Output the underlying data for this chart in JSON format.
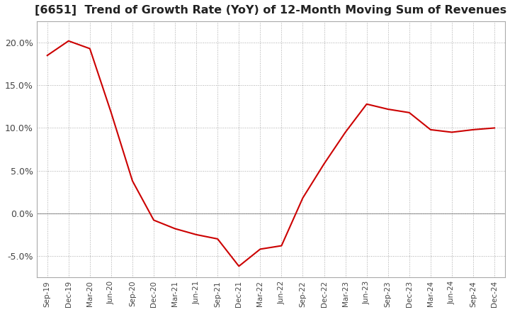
{
  "title": "[6651]  Trend of Growth Rate (YoY) of 12-Month Moving Sum of Revenues",
  "title_fontsize": 11.5,
  "line_color": "#cc0000",
  "background_color": "#ffffff",
  "grid_color": "#aaaaaa",
  "ylim": [
    -0.075,
    0.225
  ],
  "yticks": [
    -0.05,
    0.0,
    0.05,
    0.1,
    0.15,
    0.2
  ],
  "x_labels": [
    "Sep-19",
    "Dec-19",
    "Mar-20",
    "Jun-20",
    "Sep-20",
    "Dec-20",
    "Mar-21",
    "Jun-21",
    "Sep-21",
    "Dec-21",
    "Mar-22",
    "Jun-22",
    "Sep-22",
    "Dec-22",
    "Mar-23",
    "Jun-23",
    "Sep-23",
    "Dec-23",
    "Mar-24",
    "Jun-24",
    "Sep-24",
    "Dec-24"
  ],
  "y_values": [
    0.185,
    0.202,
    0.193,
    0.118,
    0.038,
    -0.008,
    -0.018,
    -0.025,
    -0.03,
    -0.062,
    -0.042,
    -0.038,
    0.018,
    0.058,
    0.095,
    0.128,
    0.122,
    0.118,
    0.098,
    0.095,
    0.098,
    0.1
  ]
}
